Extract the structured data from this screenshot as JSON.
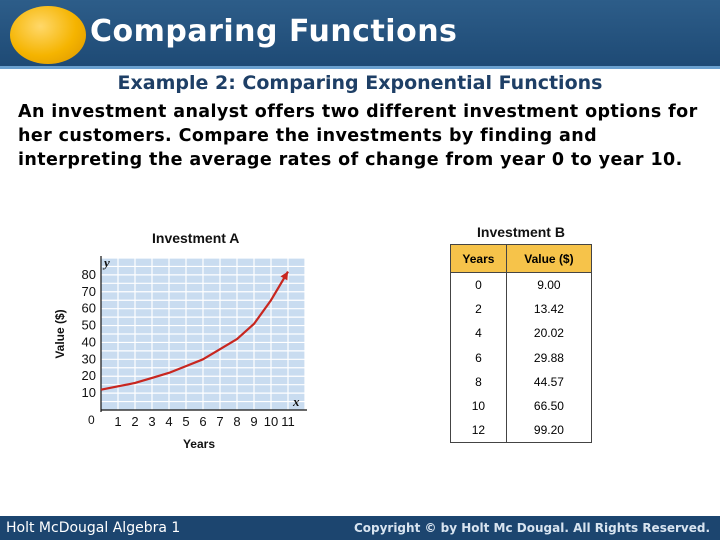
{
  "header": {
    "title": "Comparing Functions"
  },
  "subtitle": "Example 2: Comparing Exponential Functions",
  "problem_text": "An investment analyst offers two different investment options for her customers. Compare the investments by finding and interpreting the average rates of change from year 0 to year 10.",
  "graph": {
    "title": "Investment A",
    "xlabel": "Years",
    "ylabel": "Value ($)",
    "x_axis_letter": "x",
    "y_axis_letter": "y",
    "origin_label": "0"
  },
  "table": {
    "title": "Investment B",
    "headers": [
      "Years",
      "Value ($)"
    ],
    "rows": [
      [
        "0",
        "9.00"
      ],
      [
        "2",
        "13.42"
      ],
      [
        "4",
        "20.02"
      ],
      [
        "6",
        "29.88"
      ],
      [
        "8",
        "44.57"
      ],
      [
        "10",
        "66.50"
      ],
      [
        "12",
        "99.20"
      ]
    ]
  },
  "footer": {
    "left": "Holt McDougal Algebra 1",
    "right": "Copyright © by Holt Mc Dougal. All Rights Reserved."
  },
  "colors": {
    "header": "#1e4a75",
    "header_orb": "#f5b400",
    "grid_fill": "#c9dcf0",
    "grid_line": "#ffffff",
    "curve": "#c8261f",
    "table_header": "#f6c34a"
  },
  "chart_data": {
    "type": "line",
    "title": "Investment A",
    "xlabel": "Years",
    "ylabel": "Value ($)",
    "xlim": [
      0,
      12
    ],
    "ylim": [
      0,
      90
    ],
    "x_ticks": [
      1,
      2,
      3,
      4,
      5,
      6,
      7,
      8,
      9,
      10,
      11
    ],
    "y_ticks": [
      10,
      20,
      30,
      40,
      50,
      60,
      70,
      80
    ],
    "grid": true,
    "series": [
      {
        "x": [
          0,
          1,
          2,
          3,
          4,
          5,
          6,
          7,
          8,
          9,
          10,
          11
        ],
        "values": [
          12,
          14,
          16,
          19,
          22,
          26,
          30,
          36,
          42,
          51,
          65,
          82
        ]
      }
    ]
  }
}
